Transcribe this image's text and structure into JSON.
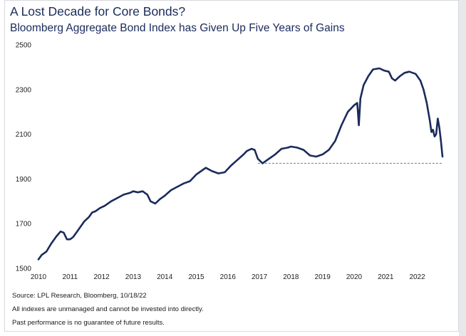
{
  "title": "A Lost Decade for Core Bonds?",
  "subtitle": "Bloomberg Aggregate Bond Index has Given Up Five Years of Gains",
  "notes": {
    "source": "Source: LPL Research, Bloomberg, 10/18/22",
    "disclaimer1": "All indexes are unmanaged and cannot be invested into directly.",
    "disclaimer2": "Past performance is no guarantee of future results."
  },
  "colors": {
    "line": "#1a2b5c",
    "text": "#1a2b5c",
    "reference": "#6b7aa0"
  },
  "chart_data": {
    "type": "line",
    "title": "A Lost Decade for Core Bonds?",
    "subtitle": "Bloomberg Aggregate Bond Index has Given Up Five Years of Gains",
    "xlabel": "",
    "ylabel": "",
    "xlim": [
      2010,
      2022.8
    ],
    "ylim": [
      1500,
      2500
    ],
    "x_ticks": [
      "2010",
      "2011",
      "2012",
      "2013",
      "2014",
      "2015",
      "2016",
      "2017",
      "2018",
      "2019",
      "2020",
      "2021",
      "2022"
    ],
    "y_ticks": [
      "1500",
      "1700",
      "1900",
      "2100",
      "2300",
      "2500"
    ],
    "grid": false,
    "legend": "none",
    "series": [
      {
        "x": [
          2010.0,
          2010.1,
          2010.25,
          2010.4,
          2010.55,
          2010.7,
          2010.8,
          2010.9,
          2011.0,
          2011.1,
          2011.3,
          2011.45,
          2011.6,
          2011.7,
          2011.8,
          2011.95,
          2012.1,
          2012.3,
          2012.5,
          2012.7,
          2012.9,
          2013.0,
          2013.15,
          2013.3,
          2013.45,
          2013.55,
          2013.7,
          2013.85,
          2014.0,
          2014.2,
          2014.4,
          2014.6,
          2014.8,
          2015.0,
          2015.1,
          2015.3,
          2015.5,
          2015.7,
          2015.9,
          2016.1,
          2016.3,
          2016.5,
          2016.6,
          2016.75,
          2016.85,
          2016.95,
          2017.1,
          2017.3,
          2017.5,
          2017.7,
          2017.9,
          2018.0,
          2018.2,
          2018.4,
          2018.6,
          2018.8,
          2019.0,
          2019.2,
          2019.4,
          2019.6,
          2019.8,
          2020.0,
          2020.1,
          2020.15,
          2020.2,
          2020.3,
          2020.45,
          2020.6,
          2020.8,
          2020.95,
          2021.1,
          2021.2,
          2021.3,
          2021.45,
          2021.6,
          2021.75,
          2021.95,
          2022.0,
          2022.1,
          2022.2,
          2022.3,
          2022.4,
          2022.45,
          2022.5,
          2022.55,
          2022.6,
          2022.65,
          2022.7,
          2022.75,
          2022.8
        ],
        "y": [
          1540,
          1560,
          1575,
          1610,
          1640,
          1665,
          1660,
          1630,
          1630,
          1640,
          1680,
          1710,
          1730,
          1750,
          1755,
          1770,
          1780,
          1800,
          1815,
          1830,
          1838,
          1845,
          1840,
          1845,
          1830,
          1800,
          1790,
          1810,
          1825,
          1850,
          1865,
          1880,
          1890,
          1920,
          1930,
          1950,
          1935,
          1925,
          1930,
          1960,
          1985,
          2010,
          2025,
          2035,
          2030,
          1990,
          1970,
          1990,
          2010,
          2035,
          2040,
          2045,
          2040,
          2030,
          2005,
          2000,
          2010,
          2030,
          2070,
          2140,
          2200,
          2230,
          2240,
          2140,
          2260,
          2320,
          2360,
          2390,
          2395,
          2385,
          2380,
          2350,
          2340,
          2360,
          2375,
          2380,
          2370,
          2360,
          2340,
          2300,
          2240,
          2160,
          2110,
          2120,
          2090,
          2100,
          2170,
          2130,
          2070,
          2000
        ]
      },
      {
        "x": [
          2016.95,
          2022.8
        ],
        "y": [
          1970,
          1970
        ]
      }
    ]
  }
}
